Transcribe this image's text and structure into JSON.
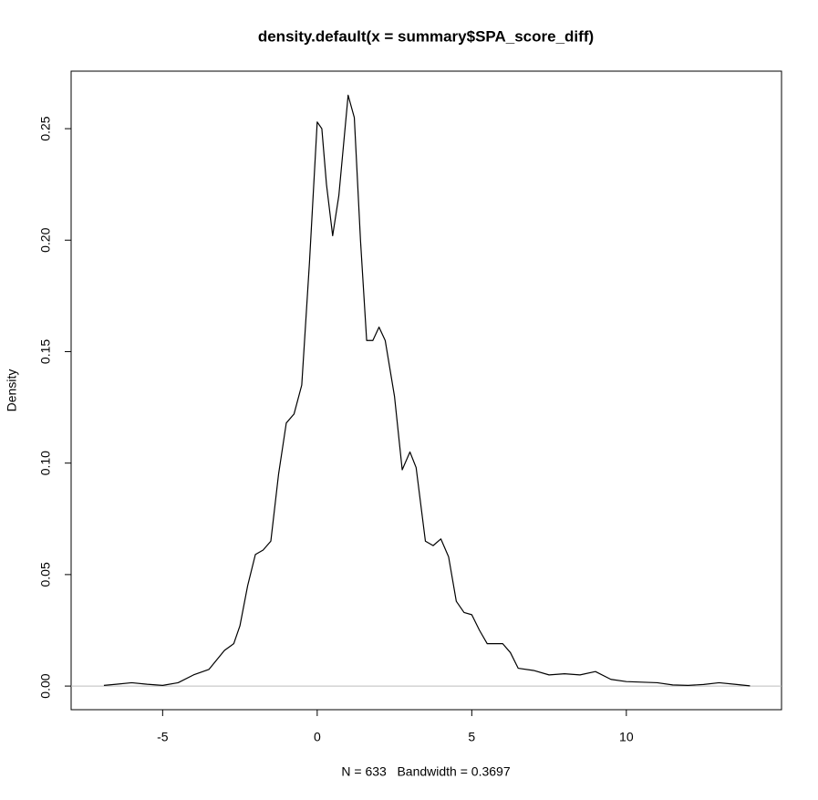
{
  "chart_data": {
    "type": "line",
    "title": "density.default(x = summary$SPA_score_diff)",
    "x_label": "N = 633   Bandwidth = 0.3697",
    "y_label": "Density",
    "color": "#000000",
    "zero_line": true,
    "zero_line_color": "#bebebe",
    "x": [
      -6.9,
      -6.5,
      -6,
      -5.5,
      -5,
      -4.5,
      -4,
      -3.5,
      -3,
      -2.7,
      -2.5,
      -2.25,
      -2,
      -1.75,
      -1.5,
      -1.25,
      -1,
      -0.75,
      -0.5,
      -0.25,
      0,
      0.15,
      0.3,
      0.5,
      0.7,
      1,
      1.2,
      1.4,
      1.6,
      1.8,
      2,
      2.2,
      2.5,
      2.75,
      3,
      3.2,
      3.5,
      3.75,
      4,
      4.25,
      4.5,
      4.75,
      5,
      5.25,
      5.5,
      5.75,
      6,
      6.25,
      6.5,
      7,
      7.5,
      8,
      8.5,
      9,
      9.5,
      10,
      11,
      11.5,
      12,
      12.5,
      13,
      13.5,
      14
    ],
    "values": [
      0.0003,
      0.0008,
      0.0015,
      0.0008,
      0.0003,
      0.0015,
      0.005,
      0.0075,
      0.016,
      0.019,
      0.027,
      0.045,
      0.059,
      0.061,
      0.065,
      0.095,
      0.118,
      0.122,
      0.135,
      0.19,
      0.253,
      0.25,
      0.225,
      0.202,
      0.22,
      0.265,
      0.255,
      0.2,
      0.155,
      0.155,
      0.161,
      0.155,
      0.13,
      0.097,
      0.105,
      0.098,
      0.065,
      0.063,
      0.066,
      0.058,
      0.038,
      0.033,
      0.032,
      0.025,
      0.019,
      0.019,
      0.019,
      0.015,
      0.008,
      0.007,
      0.005,
      0.0055,
      0.005,
      0.0065,
      0.003,
      0.002,
      0.0015,
      0.0005,
      0.0003,
      0.0007,
      0.0015,
      0.0008,
      0.0001
    ],
    "xlim": [
      -7.96,
      15.02
    ],
    "ylim": [
      -0.0106,
      0.2758
    ],
    "xticks": [
      -5,
      0,
      5,
      10
    ],
    "yticks": [
      {
        "value": 0,
        "label": "0.00"
      },
      0.05,
      {
        "value": 0.1,
        "label": "0.10"
      },
      0.15,
      {
        "value": 0.2,
        "label": "0.20"
      },
      0.25
    ]
  }
}
